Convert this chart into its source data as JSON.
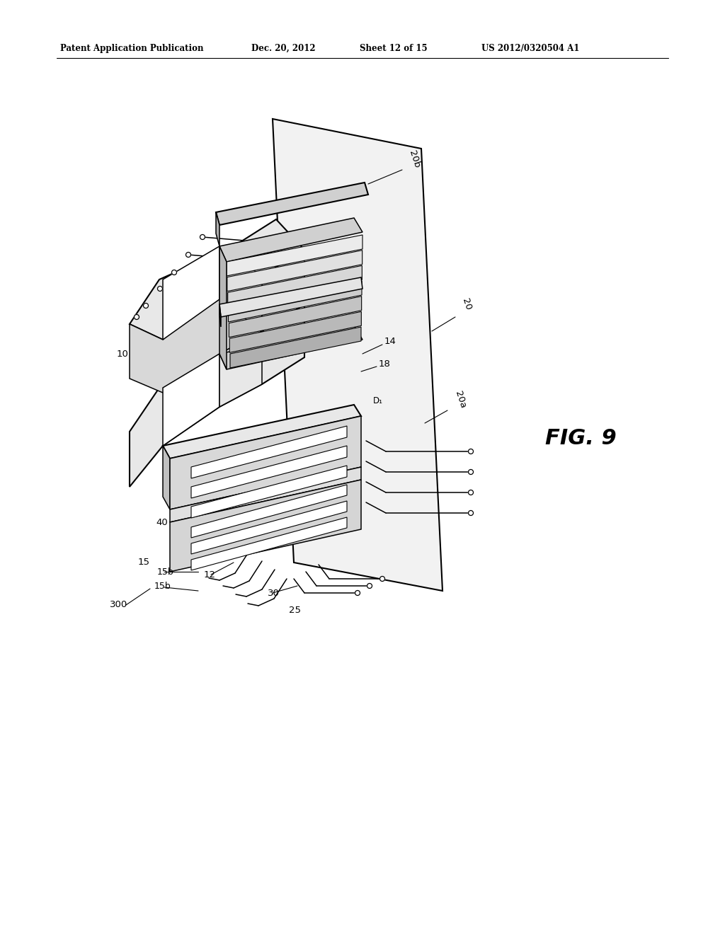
{
  "bg_color": "#ffffff",
  "header_text": "Patent Application Publication",
  "header_date": "Dec. 20, 2012",
  "header_sheet": "Sheet 12 of 15",
  "header_patent": "US 2012/0320504 A1",
  "fig_label": "FIG. 9",
  "line_color": "#000000",
  "fill_light": "#f0f0f0",
  "fill_mid": "#e0e0e0",
  "fill_dark": "#c8c8c8",
  "fill_white": "#ffffff"
}
